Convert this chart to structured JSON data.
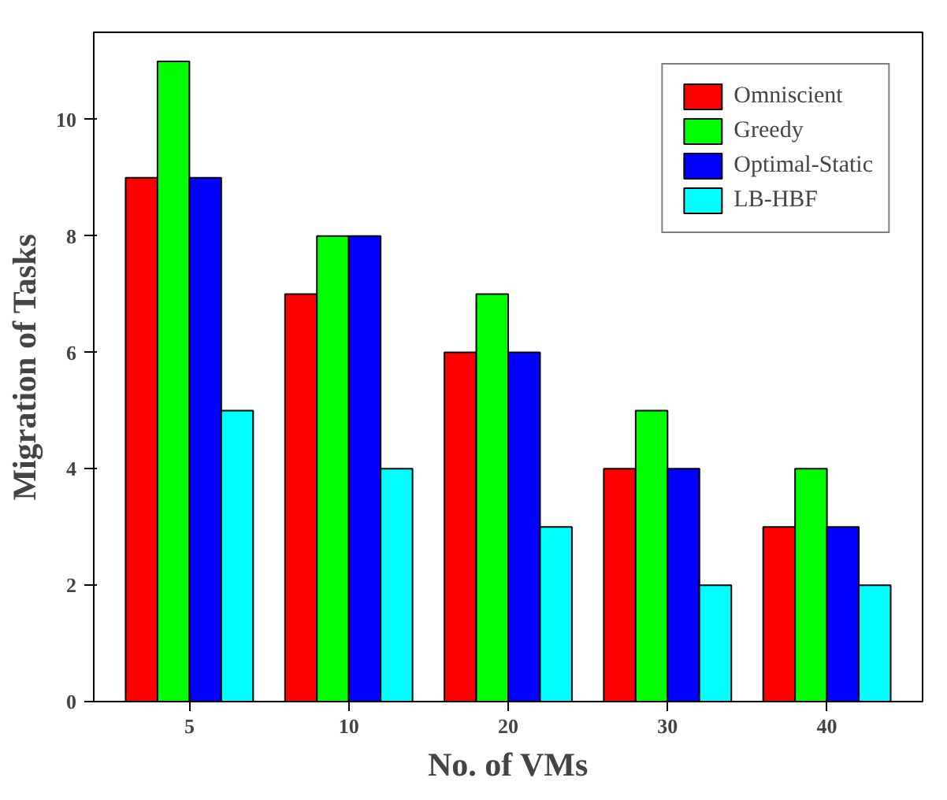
{
  "chart_data": {
    "type": "bar",
    "xlabel": "No. of VMs",
    "ylabel": "Migration of Tasks",
    "categories": [
      "5",
      "10",
      "20",
      "30",
      "40"
    ],
    "series": [
      {
        "name": "Omniscient",
        "color": "#ff0000",
        "values": [
          9,
          7,
          6,
          4,
          3
        ]
      },
      {
        "name": "Greedy",
        "color": "#00ff00",
        "values": [
          11,
          8,
          7,
          5,
          4
        ]
      },
      {
        "name": "Optimal-Static",
        "color": "#0000ff",
        "values": [
          9,
          8,
          6,
          4,
          3
        ]
      },
      {
        "name": "LB-HBF",
        "color": "#00ffff",
        "values": [
          5,
          4,
          3,
          2,
          2
        ]
      }
    ],
    "ylim": [
      0,
      11.5
    ],
    "yticks": [
      0,
      2,
      4,
      6,
      8,
      10
    ],
    "grid": false,
    "legend": "top right"
  }
}
